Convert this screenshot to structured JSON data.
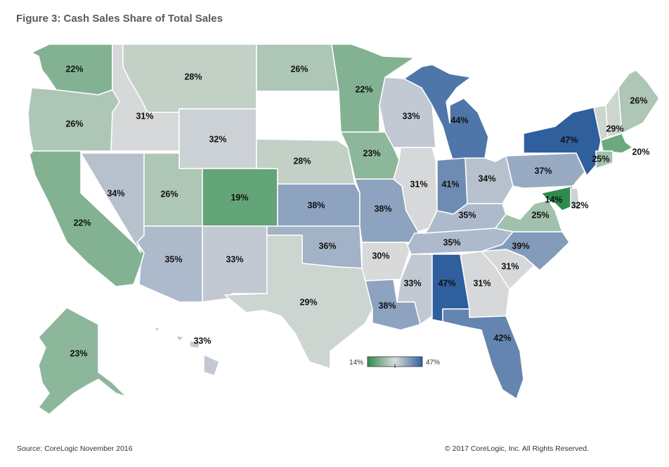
{
  "title": "Figure 3: Cash Sales Share of Total Sales",
  "source": "Source: CoreLogic November 2016",
  "copyright": "© 2017 CoreLogic, Inc. All Rights Reserved.",
  "legend": {
    "min_label": "14%",
    "max_label": "47%",
    "min": 14,
    "max": 47
  },
  "colors": {
    "low": "#2e8b4c",
    "mid": "#dcdcdc",
    "high": "#2f5f9c",
    "none": "#ffffff",
    "border": "#ffffff"
  },
  "states": [
    {
      "id": "WA",
      "value": 22,
      "label": "22%"
    },
    {
      "id": "OR",
      "value": 26,
      "label": "26%"
    },
    {
      "id": "CA",
      "value": 22,
      "label": "22%"
    },
    {
      "id": "ID",
      "value": 31,
      "label": "31%"
    },
    {
      "id": "NV",
      "value": 34,
      "label": "34%"
    },
    {
      "id": "MT",
      "value": 28,
      "label": "28%"
    },
    {
      "id": "WY",
      "value": 32,
      "label": "32%"
    },
    {
      "id": "UT",
      "value": 26,
      "label": "26%"
    },
    {
      "id": "AZ",
      "value": 35,
      "label": "35%"
    },
    {
      "id": "CO",
      "value": 19,
      "label": "19%"
    },
    {
      "id": "NM",
      "value": 33,
      "label": "33%"
    },
    {
      "id": "ND",
      "value": 26,
      "label": "26%"
    },
    {
      "id": "SD",
      "value": null,
      "label": ""
    },
    {
      "id": "NE",
      "value": 28,
      "label": "28%"
    },
    {
      "id": "KS",
      "value": 38,
      "label": "38%"
    },
    {
      "id": "OK",
      "value": 36,
      "label": "36%"
    },
    {
      "id": "TX",
      "value": 29,
      "label": "29%"
    },
    {
      "id": "MN",
      "value": 22,
      "label": "22%"
    },
    {
      "id": "IA",
      "value": 23,
      "label": "23%"
    },
    {
      "id": "MO",
      "value": 38,
      "label": "38%"
    },
    {
      "id": "AR",
      "value": 30,
      "label": "30%"
    },
    {
      "id": "LA",
      "value": 38,
      "label": "38%"
    },
    {
      "id": "WI",
      "value": 33,
      "label": "33%"
    },
    {
      "id": "IL",
      "value": 31,
      "label": "31%"
    },
    {
      "id": "MI",
      "value": 44,
      "label": "44%"
    },
    {
      "id": "IN",
      "value": 41,
      "label": "41%"
    },
    {
      "id": "OH",
      "value": 34,
      "label": "34%"
    },
    {
      "id": "KY",
      "value": 35,
      "label": "35%"
    },
    {
      "id": "TN",
      "value": 35,
      "label": "35%"
    },
    {
      "id": "MS",
      "value": 33,
      "label": "33%"
    },
    {
      "id": "AL",
      "value": 47,
      "label": "47%"
    },
    {
      "id": "GA",
      "value": 31,
      "label": "31%"
    },
    {
      "id": "FL",
      "value": 42,
      "label": "42%"
    },
    {
      "id": "SC",
      "value": 31,
      "label": "31%"
    },
    {
      "id": "NC",
      "value": 39,
      "label": "39%"
    },
    {
      "id": "VA",
      "value": 25,
      "label": "25%"
    },
    {
      "id": "WV",
      "value": null,
      "label": ""
    },
    {
      "id": "PA",
      "value": 37,
      "label": "37%"
    },
    {
      "id": "NY",
      "value": 47,
      "label": "47%"
    },
    {
      "id": "VT",
      "value": 29,
      "label": "29%"
    },
    {
      "id": "NH",
      "value": 29,
      "label": ""
    },
    {
      "id": "ME",
      "value": 26,
      "label": "26%"
    },
    {
      "id": "MA",
      "value": 20,
      "label": "20%"
    },
    {
      "id": "CT",
      "value": 25,
      "label": "25%"
    },
    {
      "id": "MD",
      "value": 14,
      "label": "14%"
    },
    {
      "id": "DE",
      "value": 32,
      "label": "32%"
    },
    {
      "id": "AK",
      "value": 23,
      "label": "23%"
    },
    {
      "id": "HI",
      "value": 33,
      "label": "33%"
    }
  ]
}
